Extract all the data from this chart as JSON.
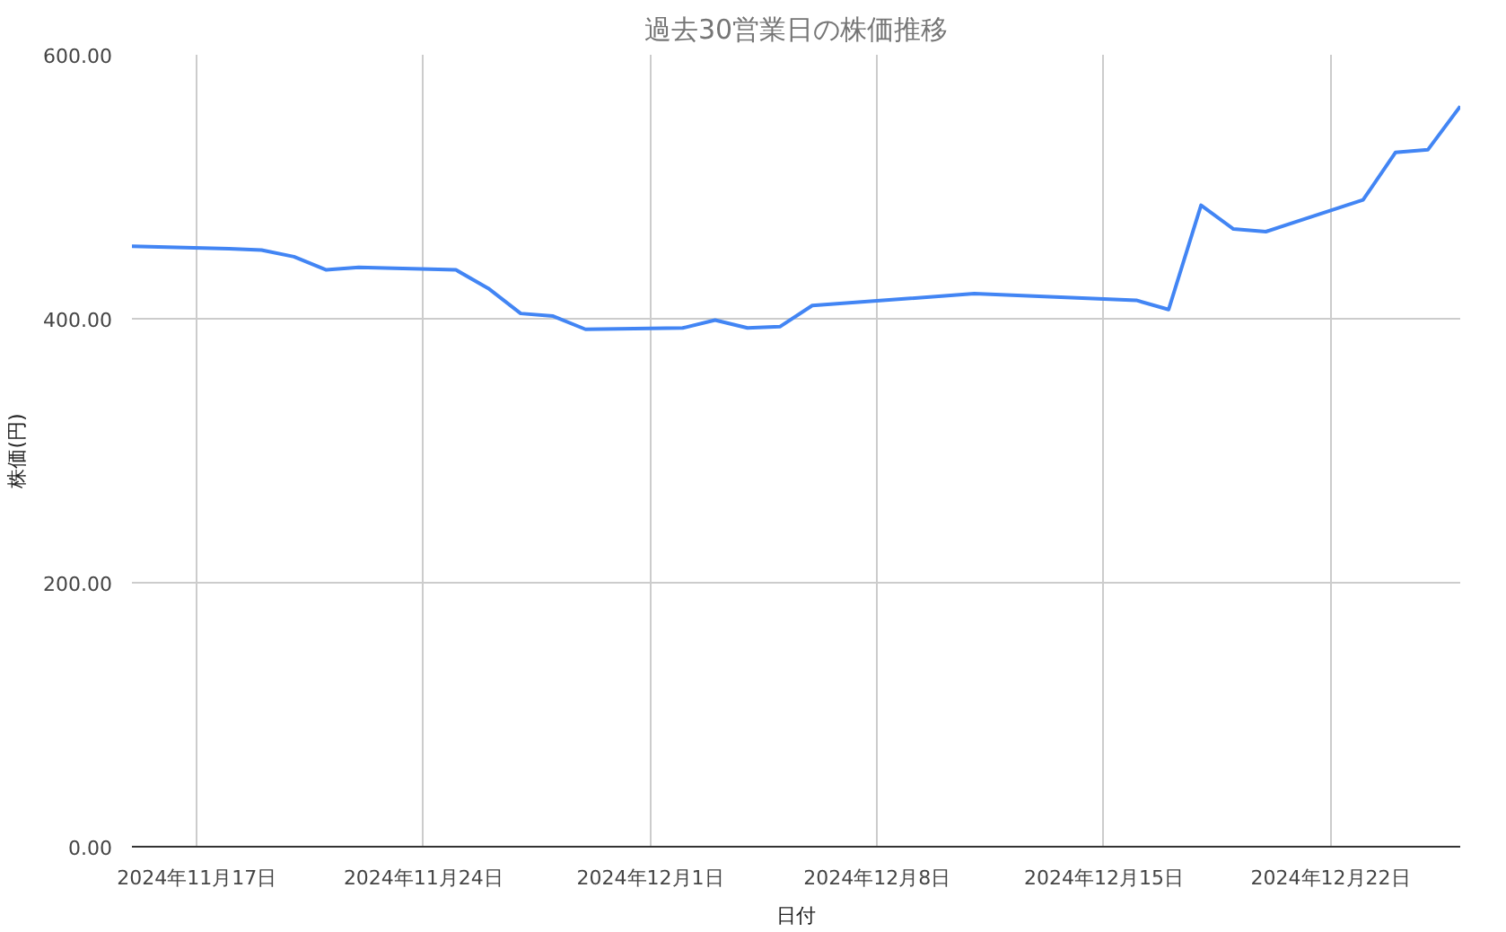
{
  "chart_data": {
    "type": "line",
    "title": "過去30営業日の株価推移",
    "xlabel": "日付",
    "ylabel": "株価(円)",
    "x": [
      "2024-11-15",
      "2024-11-18",
      "2024-11-19",
      "2024-11-20",
      "2024-11-21",
      "2024-11-22",
      "2024-11-25",
      "2024-11-26",
      "2024-11-27",
      "2024-11-28",
      "2024-11-29",
      "2024-12-02",
      "2024-12-03",
      "2024-12-04",
      "2024-12-05",
      "2024-12-06",
      "2024-12-11",
      "2024-12-16",
      "2024-12-17",
      "2024-12-18",
      "2024-12-19",
      "2024-12-20",
      "2024-12-23",
      "2024-12-24",
      "2024-12-25",
      "2024-12-26"
    ],
    "series": [
      {
        "color": "#4285f4",
        "values": [
          455,
          453,
          452,
          447,
          437,
          439,
          437,
          423,
          404,
          402,
          392,
          393,
          399,
          393,
          394,
          410,
          419,
          414,
          407,
          486,
          468,
          466,
          490,
          526,
          528,
          561
        ]
      }
    ],
    "xlim": [
      "2024-11-15",
      "2024-12-26"
    ],
    "xticks": [
      {
        "value": "2024-11-17",
        "label": "2024年11月17日"
      },
      {
        "value": "2024-11-24",
        "label": "2024年11月24日"
      },
      {
        "value": "2024-12-01",
        "label": "2024年12月1日"
      },
      {
        "value": "2024-12-08",
        "label": "2024年12月8日"
      },
      {
        "value": "2024-12-15",
        "label": "2024年12月15日"
      },
      {
        "value": "2024-12-22",
        "label": "2024年12月22日"
      }
    ],
    "ylim": [
      0,
      600
    ],
    "yticks": [
      {
        "value": 0,
        "label": "0.00"
      },
      {
        "value": 200,
        "label": "200.00"
      },
      {
        "value": 400,
        "label": "400.00"
      },
      {
        "value": 600,
        "label": "600.00"
      }
    ],
    "grid": true,
    "marker": "none",
    "line_style": "solid"
  }
}
